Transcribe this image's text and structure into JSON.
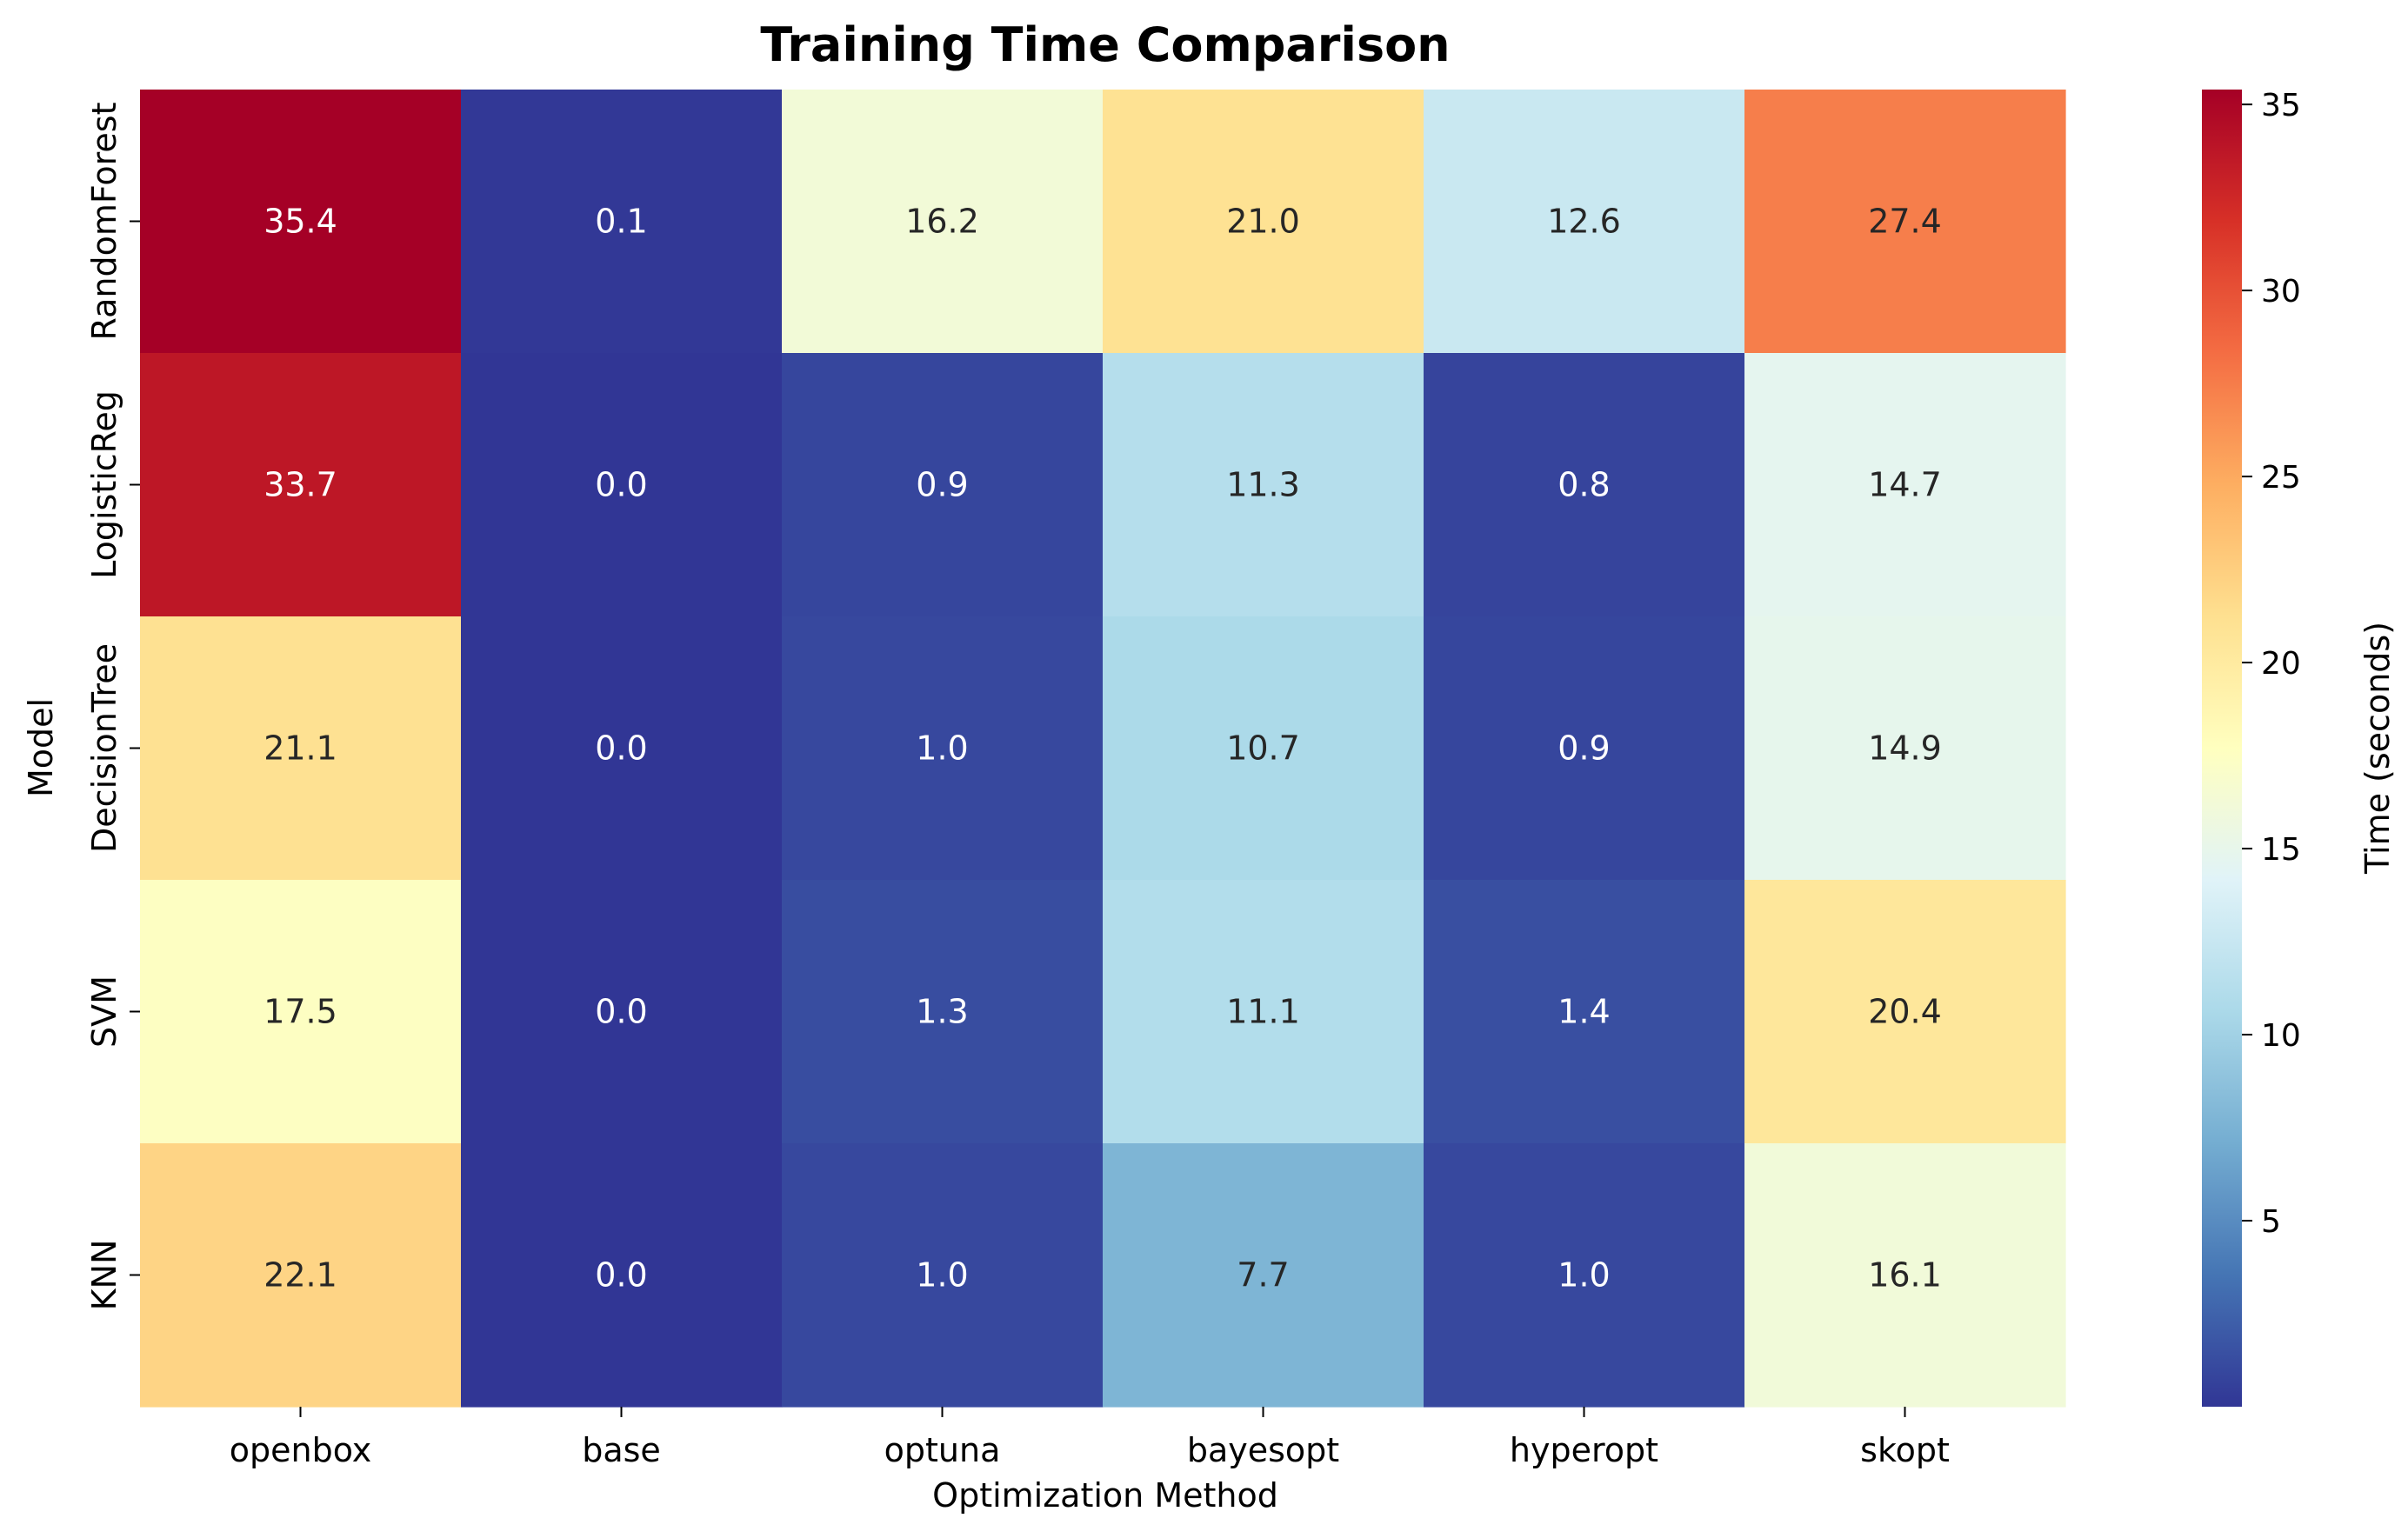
{
  "chart_data": {
    "type": "heatmap",
    "title": "Training Time Comparison",
    "xlabel": "Optimization Method",
    "ylabel": "Model",
    "x_categories": [
      "openbox",
      "base",
      "optuna",
      "bayesopt",
      "hyperopt",
      "skopt"
    ],
    "y_categories": [
      "RandomForest",
      "LogisticReg",
      "DecisionTree",
      "SVM",
      "KNN"
    ],
    "values": [
      [
        35.4,
        0.1,
        16.2,
        21.0,
        12.6,
        27.4
      ],
      [
        33.7,
        0.0,
        0.9,
        11.3,
        0.8,
        14.7
      ],
      [
        21.1,
        0.0,
        1.0,
        10.7,
        0.9,
        14.9
      ],
      [
        17.5,
        0.0,
        1.3,
        11.1,
        1.4,
        20.4
      ],
      [
        22.1,
        0.0,
        1.0,
        7.7,
        1.0,
        16.1
      ]
    ],
    "colorbar": {
      "label": "Time (seconds)",
      "colormap": "RdYlBu_r",
      "vmin": 0.0,
      "vmax": 35.4,
      "ticks": [
        5,
        10,
        15,
        20,
        25,
        30,
        35
      ]
    },
    "annotation_format": "{:.1f}"
  }
}
